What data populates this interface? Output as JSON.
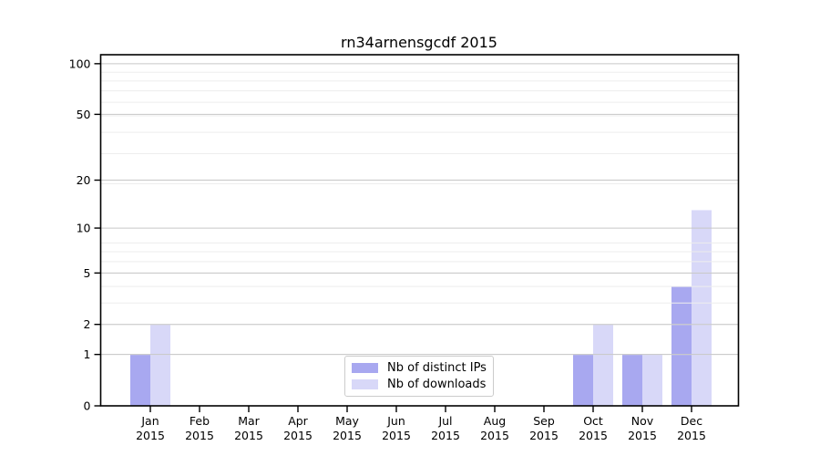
{
  "chart_data": {
    "type": "bar",
    "title": "rn34arnensgcdf 2015",
    "categories": [
      "Jan",
      "Feb",
      "Mar",
      "Apr",
      "May",
      "Jun",
      "Jul",
      "Aug",
      "Sep",
      "Oct",
      "Nov",
      "Dec"
    ],
    "year_label": "2015",
    "series": [
      {
        "name": "Nb of distinct IPs",
        "color": "#a8a8f0",
        "values": [
          1,
          0,
          0,
          0,
          0,
          0,
          0,
          0,
          0,
          1,
          1,
          4
        ]
      },
      {
        "name": "Nb of downloads",
        "color": "#d8d8f8",
        "values": [
          2,
          0,
          0,
          0,
          0,
          0,
          0,
          0,
          0,
          2,
          1,
          13
        ]
      }
    ],
    "yticks": [
      0,
      1,
      2,
      5,
      10,
      20,
      50,
      100
    ],
    "y_scale": "log10(1+v)",
    "ylim": [
      0,
      113
    ],
    "grid": "horizontal",
    "legend_position": "lower center",
    "colors": {
      "grid_major": "#c6c6c6",
      "grid_minor": "#ededed",
      "spine": "#000000"
    }
  }
}
